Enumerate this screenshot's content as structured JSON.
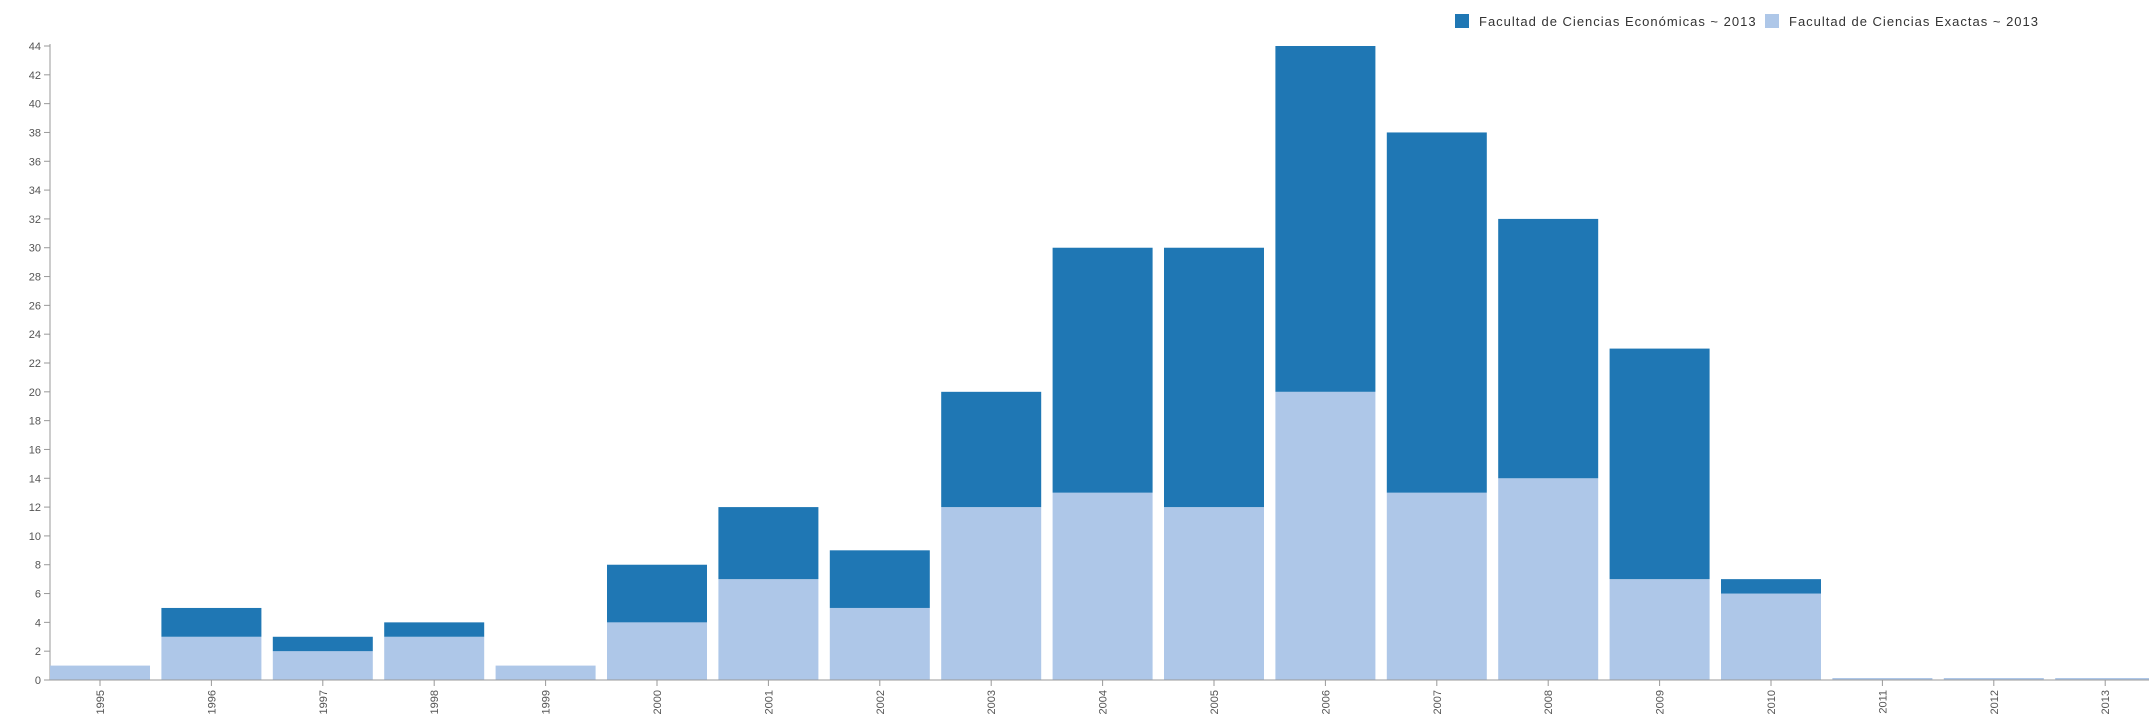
{
  "chart_data": {
    "type": "bar",
    "stacked": true,
    "categories": [
      "1995",
      "1996",
      "1997",
      "1998",
      "1999",
      "2000",
      "2001",
      "2002",
      "2003",
      "2004",
      "2005",
      "2006",
      "2007",
      "2008",
      "2009",
      "2010",
      "2011",
      "2012",
      "2013"
    ],
    "series": [
      {
        "name": "Facultad de Ciencias Exactas ~ 2013",
        "color": "#aec7e8",
        "values": [
          1,
          3,
          2,
          3,
          1,
          4,
          7,
          5,
          12,
          13,
          12,
          20,
          13,
          14,
          7,
          6,
          0,
          0,
          0
        ]
      },
      {
        "name": "Facultad de Ciencias Económicas ~ 2013",
        "color": "#1f77b4",
        "values": [
          0,
          2,
          1,
          1,
          0,
          4,
          5,
          4,
          8,
          17,
          18,
          24,
          25,
          18,
          16,
          1,
          0,
          0,
          0
        ]
      }
    ],
    "legend_order": [
      "Facultad de Ciencias Económicas ~ 2013",
      "Facultad de Ciencias Exactas ~ 2013"
    ],
    "legend_position": "top-right",
    "ylim": [
      0,
      44
    ],
    "yticks": [
      0,
      2,
      4,
      6,
      8,
      10,
      12,
      14,
      16,
      18,
      20,
      22,
      24,
      26,
      28,
      30,
      32,
      34,
      36,
      38,
      40,
      42,
      44
    ],
    "grid": false,
    "title": "",
    "xlabel": "",
    "ylabel": ""
  }
}
